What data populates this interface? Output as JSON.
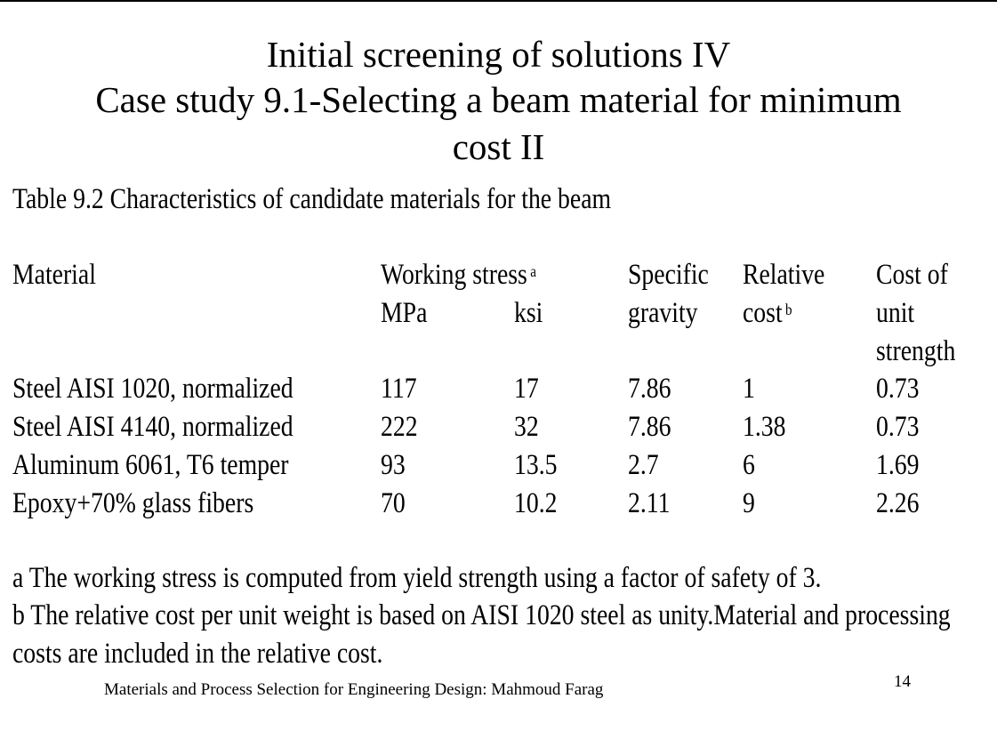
{
  "title": {
    "lines": [
      "Initial screening of solutions IV",
      "Case study 9.1-Selecting a beam material for minimum",
      "cost II"
    ]
  },
  "table": {
    "caption": "Table 9.2 Characteristics of candidate materials for the beam",
    "header": {
      "material": "Material",
      "working_stress": "Working stress",
      "working_stress_note": "a",
      "mpa": "MPa",
      "ksi": "ksi",
      "specific_gravity": [
        "Specific",
        "gravity"
      ],
      "relative_cost": [
        "Relative",
        "cost"
      ],
      "relative_cost_note": "b",
      "cost_of_unit_strength": [
        "Cost of",
        "unit",
        "strength"
      ]
    },
    "rows": [
      [
        "Steel AISI 1020, normalized",
        "117",
        "17",
        "7.86",
        "1",
        "0.73"
      ],
      [
        "Steel AISI 4140, normalized",
        "222",
        "32",
        "7.86",
        "1.38",
        "0.73"
      ],
      [
        "Aluminum 6061, T6 temper",
        "93",
        "13.5",
        "2.7",
        "6",
        "1.69"
      ],
      [
        "Epoxy+70% glass fibers",
        "70",
        "10.2",
        "2.11",
        "9",
        "2.26"
      ]
    ]
  },
  "notes": {
    "a": "a The working stress is computed from yield strength using a factor of safety of 3.",
    "b": [
      "b  The relative cost per unit weight is based on AISI 1020 steel as unity.Material and processing",
      "costs are included in the relative cost."
    ]
  },
  "footer": {
    "citation": "Materials and Process Selection for Engineering Design: Mahmoud Farag",
    "page_number": "14"
  }
}
